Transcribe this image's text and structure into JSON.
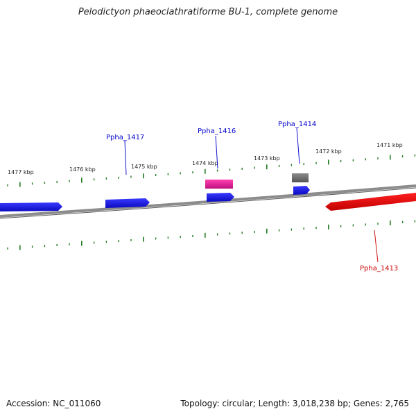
{
  "title": "Pelodictyon phaeoclathratiforme BU-1, complete genome",
  "footer": {
    "accession": "Accession: NC_011060",
    "summary": "Topology: circular; Length: 3,018,238 bp; Genes: 2,765"
  },
  "colors": {
    "backbone": "#7a7a7a",
    "tick": "#1f7a1f",
    "forward_gene": "#1010e0",
    "reverse_gene": "#e00000",
    "pink_gene": "#e0209a",
    "gray_gene": "#6e6e6e",
    "label_blue": "#0000cc",
    "label_red": "#cc0000"
  },
  "ruler": {
    "unit": "kbp",
    "labels": [
      "1477 kbp",
      "1476 kbp",
      "1475 kbp",
      "1474 kbp",
      "1473 kbp",
      "1472 kbp",
      "1471 kbp"
    ]
  },
  "genes": [
    {
      "label": "",
      "strand": "forward",
      "color": "blue"
    },
    {
      "label": "Ppha_1417",
      "strand": "forward",
      "color": "blue"
    },
    {
      "label": "Ppha_1416",
      "strand": "forward",
      "color": "blue"
    },
    {
      "label": "",
      "strand": "forward",
      "color": "pink"
    },
    {
      "label": "Ppha_1414",
      "strand": "forward",
      "color": "blue"
    },
    {
      "label": "",
      "strand": "forward",
      "color": "gray"
    },
    {
      "label": "Ppha_1413",
      "strand": "reverse",
      "color": "red"
    }
  ]
}
